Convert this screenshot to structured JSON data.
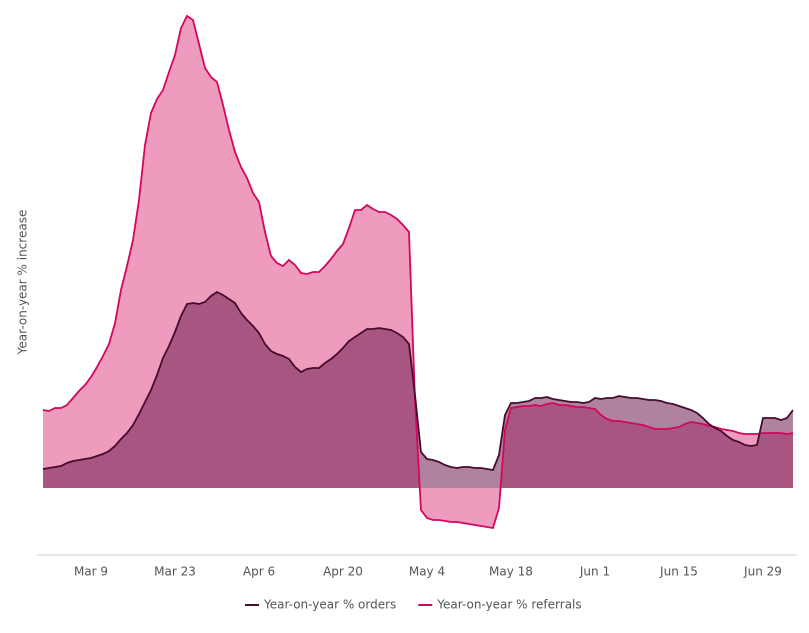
{
  "chart_data": {
    "type": "area",
    "ylabel": "Year-on-year % increase",
    "x": [
      0,
      1,
      2,
      3,
      4,
      5,
      6,
      7,
      8,
      9,
      10,
      11,
      12,
      13,
      14,
      15,
      16,
      17,
      18,
      19,
      20,
      21,
      22,
      23,
      24,
      25,
      26,
      27,
      28,
      29,
      30,
      31,
      32,
      33,
      34,
      35,
      36,
      37,
      38,
      39,
      40,
      41,
      42,
      43,
      44,
      45,
      46,
      47,
      48,
      49,
      50,
      51,
      52,
      53,
      54,
      55,
      56,
      57,
      58,
      59,
      60,
      61,
      62,
      63,
      64,
      65,
      66,
      67,
      68,
      69,
      70,
      71,
      72,
      73,
      74,
      75,
      76,
      77,
      78,
      79,
      80,
      81,
      82,
      83,
      84,
      85,
      86,
      87,
      88,
      89,
      90,
      91,
      92,
      93,
      94,
      95,
      96,
      97,
      98,
      99,
      100,
      101,
      102,
      103,
      104,
      105,
      106,
      107,
      108,
      109,
      110,
      111,
      112,
      113,
      114,
      115,
      116,
      117,
      118,
      119,
      120,
      121,
      122,
      123,
      124,
      125
    ],
    "series": [
      {
        "name": "Year-on-year % referrals",
        "color": "#d3075e",
        "fill": "#ef9bbd",
        "values": [
          78,
          77,
          80,
          80,
          83,
          90,
          97,
          103,
          111,
          121,
          132,
          144,
          165,
          198,
          222,
          248,
          288,
          343,
          375,
          389,
          398,
          416,
          433,
          460,
          472,
          468,
          444,
          420,
          411,
          406,
          383,
          358,
          336,
          321,
          310,
          295,
          286,
          256,
          232,
          225,
          222,
          228,
          223,
          215,
          214,
          216,
          216,
          222,
          229,
          237,
          244,
          260,
          278,
          278,
          283,
          279,
          276,
          276,
          273,
          269,
          263,
          256,
          88,
          -22,
          -30,
          -32,
          -32,
          -33,
          -34,
          -34,
          -35,
          -36,
          -37,
          -38,
          -39,
          -40,
          -20,
          58,
          80,
          81,
          82,
          82,
          83,
          82,
          84,
          85,
          83,
          83,
          82,
          81,
          81,
          80,
          79,
          73,
          69,
          67,
          67,
          66,
          65,
          64,
          63,
          61,
          59,
          59,
          59,
          60,
          61,
          64,
          66,
          65,
          64,
          62,
          61,
          59,
          58,
          57,
          55,
          54,
          54,
          54,
          55,
          55,
          55,
          55,
          54,
          55
        ]
      },
      {
        "name": "Year-on-year % orders",
        "color": "#470b2e",
        "fill": "rgba(110,30,80,0.55)",
        "values": [
          19,
          20,
          21,
          22,
          25,
          27,
          28,
          29,
          30,
          32,
          34,
          37,
          42,
          49,
          55,
          63,
          74,
          86,
          98,
          113,
          130,
          142,
          156,
          172,
          184,
          185,
          184,
          186,
          192,
          196,
          193,
          189,
          185,
          175,
          168,
          162,
          155,
          144,
          137,
          134,
          132,
          129,
          121,
          116,
          119,
          120,
          120,
          125,
          129,
          134,
          140,
          147,
          151,
          155,
          159,
          159,
          160,
          159,
          158,
          155,
          151,
          144,
          93,
          36,
          29,
          28,
          26,
          23,
          21,
          20,
          21,
          21,
          20,
          20,
          19,
          18,
          33,
          73,
          85,
          85,
          86,
          87,
          90,
          90,
          91,
          89,
          88,
          87,
          86,
          86,
          85,
          86,
          90,
          89,
          90,
          90,
          92,
          91,
          90,
          90,
          89,
          88,
          88,
          87,
          85,
          84,
          82,
          80,
          78,
          75,
          70,
          64,
          60,
          57,
          52,
          48,
          46,
          43,
          42,
          43,
          70,
          70,
          70,
          68,
          70,
          78
        ]
      }
    ],
    "legend_order": [
      1,
      0
    ],
    "xlim": [
      -1,
      125.67
    ],
    "xticks": [
      {
        "value": 8,
        "label": "Mar 9"
      },
      {
        "value": 22,
        "label": "Mar 23"
      },
      {
        "value": 36,
        "label": "Apr 6"
      },
      {
        "value": 50,
        "label": "Apr 20"
      },
      {
        "value": 64,
        "label": "May 4"
      },
      {
        "value": 78,
        "label": "May 18"
      },
      {
        "value": 92,
        "label": "Jun 1"
      },
      {
        "value": 106,
        "label": "Jun 15"
      },
      {
        "value": 120,
        "label": "Jun 29"
      }
    ],
    "ylim": [
      -67,
      483
    ],
    "grid": false
  }
}
